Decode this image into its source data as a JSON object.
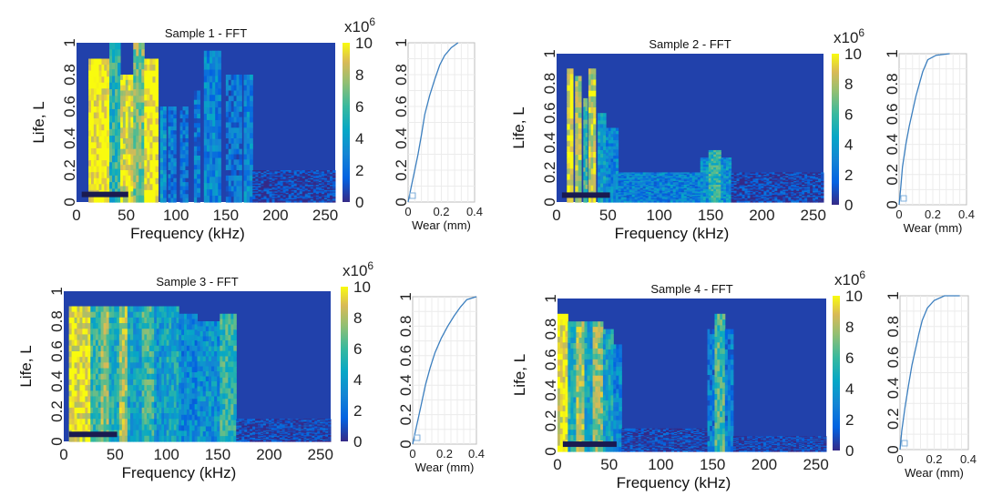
{
  "chart_data": [
    {
      "type": "heatmap",
      "title": "Sample 1 - FFT",
      "xlabel": "Frequency (kHz)",
      "ylabel": "Life, L",
      "xlim": [
        0,
        260
      ],
      "ylim": [
        0,
        1
      ],
      "xticks": [
        "0",
        "50",
        "100",
        "150",
        "200",
        "250"
      ],
      "yticks": [
        "0",
        "0.2",
        "0.4",
        "0.6",
        "0.8",
        "1"
      ],
      "colorbar": {
        "min": 0,
        "max": 10,
        "ticks": [
          "0",
          "2",
          "4",
          "6",
          "8",
          "10"
        ],
        "exponent": "x10",
        "exponent_power": "6",
        "colormap": "parula"
      },
      "dark_band_x": [
        0.02,
        0.2
      ],
      "bands": [
        [
          12,
          33,
          1.0,
          0.9
        ],
        [
          33,
          44,
          0.55,
          1.0
        ],
        [
          44,
          57,
          0.9,
          0.8
        ],
        [
          57,
          68,
          0.7,
          1.0
        ],
        [
          68,
          82,
          1.0,
          0.9
        ],
        [
          84,
          90,
          0.35,
          0.6
        ],
        [
          92,
          100,
          0.25,
          0.6
        ],
        [
          104,
          112,
          0.22,
          0.6
        ],
        [
          118,
          124,
          0.25,
          0.7
        ],
        [
          128,
          145,
          0.3,
          0.95
        ],
        [
          150,
          166,
          0.22,
          0.8
        ],
        [
          168,
          177,
          0.3,
          0.8
        ],
        [
          177,
          260,
          0.06,
          0.2
        ]
      ],
      "wear": {
        "xlabel": "Wear (mm)",
        "xlim": [
          0,
          0.4
        ],
        "xticks": [
          "0",
          "0.2",
          "0.4"
        ],
        "yticks": [
          "0",
          "0.2",
          "0.4",
          "0.6",
          "0.8",
          "1"
        ],
        "curve": [
          [
            0.0,
            0.0
          ],
          [
            0.02,
            0.1
          ],
          [
            0.04,
            0.2
          ],
          [
            0.06,
            0.3
          ],
          [
            0.08,
            0.42
          ],
          [
            0.1,
            0.55
          ],
          [
            0.13,
            0.67
          ],
          [
            0.16,
            0.77
          ],
          [
            0.19,
            0.86
          ],
          [
            0.22,
            0.92
          ],
          [
            0.26,
            0.97
          ],
          [
            0.3,
            1.0
          ]
        ]
      }
    },
    {
      "type": "heatmap",
      "title": "Sample 2 - FFT",
      "xlabel": "Frequency (kHz)",
      "ylabel": "Life, L",
      "xlim": [
        0,
        260
      ],
      "ylim": [
        0,
        1
      ],
      "xticks": [
        "0",
        "50",
        "100",
        "150",
        "200",
        "250"
      ],
      "yticks": [
        "0",
        "0.2",
        "0.4",
        "0.6",
        "0.8",
        "1"
      ],
      "colorbar": {
        "min": 0,
        "max": 10,
        "ticks": [
          "0",
          "2",
          "4",
          "6",
          "8",
          "10"
        ],
        "exponent": "x10",
        "exponent_power": "6",
        "colormap": "parula"
      },
      "dark_band_x": [
        0.02,
        0.2
      ],
      "bands": [
        [
          10,
          16,
          0.95,
          0.9
        ],
        [
          18,
          24,
          0.8,
          0.85
        ],
        [
          26,
          30,
          0.6,
          0.7
        ],
        [
          31,
          38,
          0.85,
          0.9
        ],
        [
          40,
          48,
          0.4,
          0.6
        ],
        [
          48,
          60,
          0.3,
          0.5
        ],
        [
          60,
          140,
          0.28,
          0.2
        ],
        [
          140,
          148,
          0.35,
          0.3
        ],
        [
          148,
          160,
          0.55,
          0.35
        ],
        [
          160,
          170,
          0.35,
          0.3
        ],
        [
          170,
          260,
          0.07,
          0.2
        ]
      ],
      "wear": {
        "xlabel": "Wear (mm)",
        "xlim": [
          0,
          0.4
        ],
        "xticks": [
          "0",
          "0.2",
          "0.4"
        ],
        "yticks": [
          "0",
          "0.2",
          "0.4",
          "0.6",
          "0.8",
          "1"
        ],
        "curve": [
          [
            0.0,
            0.0
          ],
          [
            0.01,
            0.12
          ],
          [
            0.02,
            0.25
          ],
          [
            0.04,
            0.4
          ],
          [
            0.06,
            0.52
          ],
          [
            0.08,
            0.62
          ],
          [
            0.1,
            0.72
          ],
          [
            0.12,
            0.8
          ],
          [
            0.14,
            0.88
          ],
          [
            0.17,
            0.96
          ],
          [
            0.22,
            0.99
          ],
          [
            0.3,
            1.0
          ]
        ]
      }
    },
    {
      "type": "heatmap",
      "title": "Sample 3 - FFT",
      "xlabel": "Frequency (kHz)",
      "ylabel": "Life, L",
      "xlim": [
        0,
        260
      ],
      "ylim": [
        0,
        1
      ],
      "xticks": [
        "0",
        "50",
        "100",
        "150",
        "200",
        "250"
      ],
      "yticks": [
        "0",
        "0.2",
        "0.4",
        "0.6",
        "0.8",
        "1"
      ],
      "colorbar": {
        "min": 0,
        "max": 10,
        "ticks": [
          "0",
          "2",
          "4",
          "6",
          "8",
          "10"
        ],
        "exponent": "x10",
        "exponent_power": "6",
        "colormap": "parula"
      },
      "dark_band_x": [
        0.02,
        0.2
      ],
      "bands": [
        [
          5,
          26,
          0.95,
          0.9
        ],
        [
          26,
          36,
          0.55,
          0.9
        ],
        [
          36,
          44,
          0.75,
          0.9
        ],
        [
          44,
          54,
          0.5,
          0.9
        ],
        [
          54,
          62,
          0.8,
          0.9
        ],
        [
          62,
          76,
          0.45,
          0.9
        ],
        [
          76,
          88,
          0.6,
          0.9
        ],
        [
          88,
          100,
          0.4,
          0.9
        ],
        [
          100,
          112,
          0.45,
          0.9
        ],
        [
          112,
          130,
          0.3,
          0.85
        ],
        [
          130,
          152,
          0.35,
          0.8
        ],
        [
          152,
          168,
          0.55,
          0.85
        ],
        [
          168,
          260,
          0.07,
          0.15
        ]
      ],
      "wear": {
        "xlabel": "Wear (mm)",
        "xlim": [
          0,
          0.4
        ],
        "xticks": [
          "0",
          "0.2",
          "0.4"
        ],
        "yticks": [
          "0",
          "0.2",
          "0.4",
          "0.6",
          "0.8",
          "1"
        ],
        "curve": [
          [
            0.0,
            0.0
          ],
          [
            0.02,
            0.1
          ],
          [
            0.05,
            0.25
          ],
          [
            0.08,
            0.4
          ],
          [
            0.11,
            0.52
          ],
          [
            0.14,
            0.62
          ],
          [
            0.18,
            0.72
          ],
          [
            0.22,
            0.8
          ],
          [
            0.26,
            0.87
          ],
          [
            0.3,
            0.93
          ],
          [
            0.34,
            0.98
          ],
          [
            0.4,
            1.0
          ]
        ]
      }
    },
    {
      "type": "heatmap",
      "title": "Sample 4 - FFT",
      "xlabel": "Frequency (kHz)",
      "ylabel": "Life, L",
      "xlim": [
        0,
        260
      ],
      "ylim": [
        0,
        1
      ],
      "xticks": [
        "0",
        "50",
        "100",
        "150",
        "200",
        "250"
      ],
      "yticks": [
        "0",
        "0.2",
        "0.4",
        "0.6",
        "0.8",
        "1"
      ],
      "colorbar": {
        "min": 0,
        "max": 10,
        "ticks": [
          "0",
          "2",
          "4",
          "6",
          "8",
          "10"
        ],
        "exponent": "x10",
        "exponent_power": "6",
        "colormap": "parula"
      },
      "dark_band_x": [
        0.02,
        0.22
      ],
      "bands": [
        [
          0,
          10,
          0.95,
          0.9
        ],
        [
          10,
          18,
          0.5,
          0.85
        ],
        [
          18,
          26,
          0.8,
          0.85
        ],
        [
          26,
          34,
          0.45,
          0.85
        ],
        [
          34,
          44,
          0.75,
          0.85
        ],
        [
          44,
          54,
          0.45,
          0.8
        ],
        [
          54,
          62,
          0.3,
          0.7
        ],
        [
          62,
          145,
          0.07,
          0.15
        ],
        [
          145,
          152,
          0.25,
          0.8
        ],
        [
          152,
          162,
          0.6,
          0.9
        ],
        [
          162,
          170,
          0.25,
          0.8
        ],
        [
          170,
          260,
          0.06,
          0.1
        ]
      ],
      "wear": {
        "xlabel": "Wear (mm)",
        "xlim": [
          0,
          0.4
        ],
        "xticks": [
          "0",
          "0.2",
          "0.4"
        ],
        "yticks": [
          "0",
          "0.2",
          "0.4",
          "0.6",
          "0.8",
          "1"
        ],
        "curve": [
          [
            0.0,
            0.0
          ],
          [
            0.01,
            0.12
          ],
          [
            0.03,
            0.28
          ],
          [
            0.05,
            0.42
          ],
          [
            0.07,
            0.55
          ],
          [
            0.09,
            0.65
          ],
          [
            0.11,
            0.75
          ],
          [
            0.13,
            0.84
          ],
          [
            0.16,
            0.92
          ],
          [
            0.2,
            0.97
          ],
          [
            0.26,
            1.0
          ],
          [
            0.35,
            1.0
          ]
        ]
      }
    }
  ]
}
